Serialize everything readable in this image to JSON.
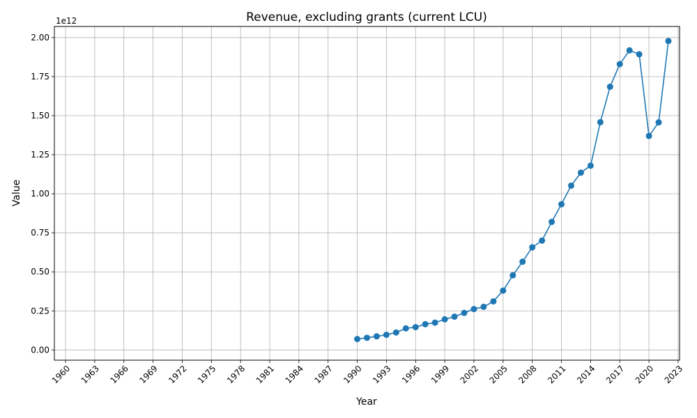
{
  "chart_data": {
    "type": "line",
    "title": "Revenue, excluding grants (current LCU)",
    "xlabel": "Year",
    "ylabel": "Value",
    "y_offset_label": "1e12",
    "xlim": [
      1958.85,
      2023.15
    ],
    "ylim": [
      -65500000000.0,
      2071000000000.0
    ],
    "x_ticks": [
      1960,
      1963,
      1966,
      1969,
      1972,
      1975,
      1978,
      1981,
      1984,
      1987,
      1990,
      1993,
      1996,
      1999,
      2002,
      2005,
      2008,
      2011,
      2014,
      2017,
      2020,
      2023
    ],
    "x_tick_labels": [
      "1960",
      "1963",
      "1966",
      "1969",
      "1972",
      "1975",
      "1978",
      "1981",
      "1984",
      "1987",
      "1990",
      "1993",
      "1996",
      "1999",
      "2002",
      "2005",
      "2008",
      "2011",
      "2014",
      "2017",
      "2020",
      "2023"
    ],
    "y_ticks": [
      0,
      250000000000.0,
      500000000000.0,
      750000000000.0,
      1000000000000.0,
      1250000000000.0,
      1500000000000.0,
      1750000000000.0,
      2000000000000.0
    ],
    "y_tick_labels": [
      "0.00",
      "0.25",
      "0.50",
      "0.75",
      "1.00",
      "1.25",
      "1.50",
      "1.75",
      "2.00"
    ],
    "grid": true,
    "legend": "none",
    "series": [
      {
        "color": "#1f77b4",
        "marker": "circle",
        "x": [
          1990,
          1991,
          1992,
          1993,
          1994,
          1995,
          1996,
          1997,
          1998,
          1999,
          2000,
          2001,
          2002,
          2003,
          2004,
          2005,
          2006,
          2007,
          2008,
          2009,
          2010,
          2011,
          2012,
          2013,
          2014,
          2015,
          2016,
          2017,
          2018,
          2019,
          2020,
          2021,
          2022
        ],
        "values": [
          70000000000.0,
          78000000000.0,
          87000000000.0,
          97000000000.0,
          112000000000.0,
          138000000000.0,
          146000000000.0,
          165000000000.0,
          175000000000.0,
          196000000000.0,
          213000000000.0,
          237000000000.0,
          262000000000.0,
          276000000000.0,
          311000000000.0,
          380000000000.0,
          478000000000.0,
          565000000000.0,
          657000000000.0,
          700000000000.0,
          820000000000.0,
          933000000000.0,
          1052000000000.0,
          1135000000000.0,
          1180000000000.0,
          1458000000000.0,
          1685000000000.0,
          1830000000000.0,
          1918000000000.0,
          1893000000000.0,
          1370000000000.0,
          1457000000000.0,
          1978000000000.0
        ]
      }
    ]
  }
}
